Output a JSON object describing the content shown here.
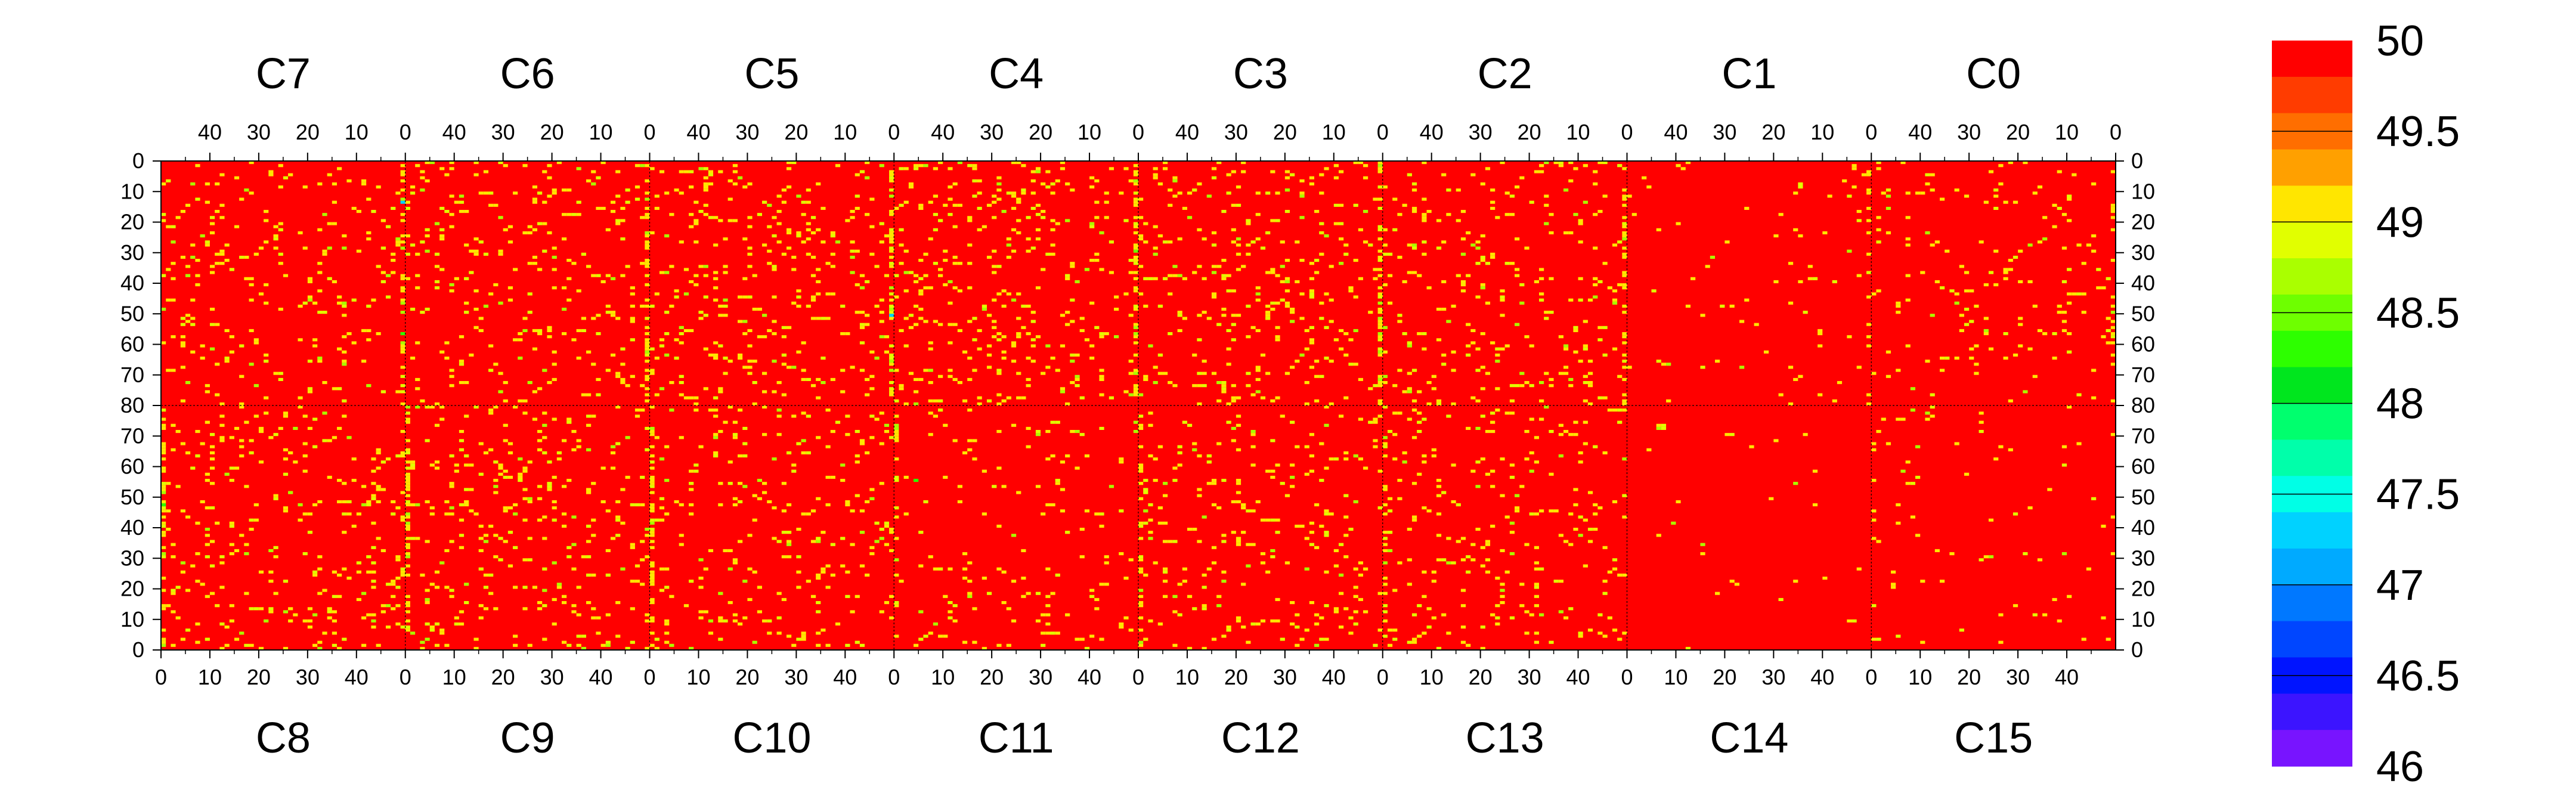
{
  "chart_data": {
    "type": "heatmap",
    "title": "",
    "xlabel": "",
    "ylabel": "",
    "top_column_labels": [
      "C7",
      "C6",
      "C5",
      "C4",
      "C3",
      "C2",
      "C1",
      "C0"
    ],
    "bottom_column_labels": [
      "C8",
      "C9",
      "C10",
      "C11",
      "C12",
      "C13",
      "C14",
      "C15"
    ],
    "columns_per_block": 50,
    "rows_per_half": 80,
    "top_axis_ticks": [
      "40",
      "30",
      "20",
      "10",
      "0"
    ],
    "bottom_axis_ticks": [
      "0",
      "10",
      "20",
      "30",
      "40"
    ],
    "left_axis_ticks": [
      "0",
      "10",
      "20",
      "30",
      "40",
      "50",
      "60",
      "70",
      "80",
      "70",
      "60",
      "50",
      "40",
      "30",
      "20",
      "10",
      "0"
    ],
    "right_axis_ticks": [
      "0",
      "10",
      "20",
      "30",
      "40",
      "50",
      "60",
      "70",
      "80",
      "70",
      "60",
      "50",
      "40",
      "30",
      "20",
      "10",
      "0"
    ],
    "background_value": 50,
    "zlim": [
      46,
      50
    ],
    "colorbar_ticks": [
      "50",
      "49.5",
      "49",
      "48.5",
      "48",
      "47.5",
      "47",
      "46.5",
      "46"
    ],
    "colorbar_colors": [
      "#ff0000",
      "#ff3c00",
      "#ff6e00",
      "#ffa000",
      "#ffe600",
      "#e1ff00",
      "#aaff00",
      "#6eff00",
      "#2dff00",
      "#00e61e",
      "#00ff6e",
      "#00ffaa",
      "#00ffe6",
      "#00d2ff",
      "#00aaff",
      "#0078ff",
      "#0046ff",
      "#0014ff",
      "#3c14ff",
      "#7814ff"
    ],
    "cell_density_by_block": {
      "top": [
        0.055,
        0.06,
        0.07,
        0.075,
        0.065,
        0.06,
        0.02,
        0.035
      ],
      "bottom": [
        0.06,
        0.065,
        0.06,
        0.035,
        0.055,
        0.05,
        0.005,
        0.02
      ]
    },
    "low_value_cells": [
      {
        "block": "C7",
        "col": 0,
        "row": 28,
        "value": 48.6
      },
      {
        "block": "C7",
        "col": 0,
        "row": 13,
        "value": 47.2
      },
      {
        "block": "C7",
        "col": 0,
        "row": 56,
        "value": 48.2
      },
      {
        "block": "C8",
        "col": 0,
        "row": 47,
        "value": 48.4
      },
      {
        "block": "C9",
        "col": 2,
        "row": 79,
        "value": 48.8
      },
      {
        "block": "C5",
        "col": 0,
        "row": 50,
        "value": 47.3
      },
      {
        "block": "C4",
        "col": 0,
        "row": 29,
        "value": 48.5
      },
      {
        "block": "C3",
        "col": 0,
        "row": 51,
        "value": 48.7
      },
      {
        "block": "C11",
        "col": 4,
        "row": 55,
        "value": 48.3
      },
      {
        "block": "C13",
        "col": 26,
        "row": 41,
        "value": 48.6
      }
    ]
  }
}
